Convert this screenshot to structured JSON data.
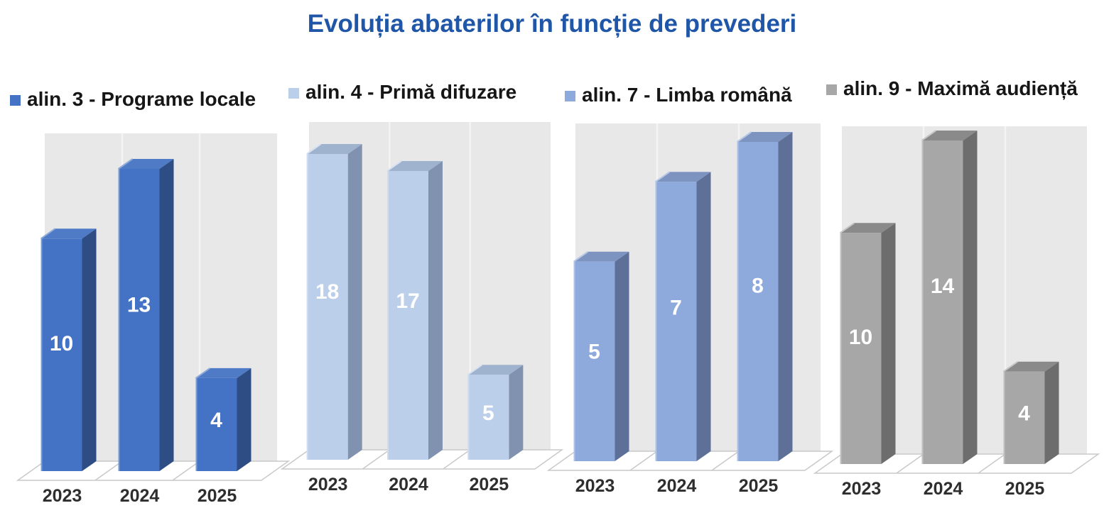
{
  "title": "Evoluția abaterilor în funcție de prevederi",
  "title_color": "#2056a8",
  "chart_data": [
    {
      "type": "bar",
      "name": "alin. 3 - Programe locale",
      "categories": [
        "2023",
        "2024",
        "2025"
      ],
      "values": [
        10,
        13,
        4
      ],
      "data_labels": [
        "10",
        "13",
        "4"
      ],
      "legend_position": "top",
      "colors": {
        "front": "#4472c4",
        "side": "#2e4d85",
        "top": "#4f7ac6",
        "edge": "#8fabd9"
      }
    },
    {
      "type": "bar",
      "name": "alin. 4 - Primă difuzare",
      "categories": [
        "2023",
        "2024",
        "2025"
      ],
      "values": [
        18,
        17,
        5
      ],
      "data_labels": [
        "18",
        "17",
        "5"
      ],
      "legend_position": "top",
      "colors": {
        "front": "#bccfea",
        "side": "#8092af",
        "top": "#9fb2ce",
        "edge": "#d6e1f2"
      }
    },
    {
      "type": "bar",
      "name": "alin. 7 - Limba română",
      "categories": [
        "2023",
        "2024",
        "2025"
      ],
      "values": [
        5,
        7,
        8
      ],
      "data_labels": [
        "5",
        "7",
        "8"
      ],
      "legend_position": "top",
      "colors": {
        "front": "#8ea9db",
        "side": "#5e7098",
        "top": "#7d94c0",
        "edge": "#b7c8e6"
      }
    },
    {
      "type": "bar",
      "name": "alin. 9 - Maximă audiență",
      "categories": [
        "2023",
        "2024",
        "2025"
      ],
      "values": [
        10,
        14,
        4
      ],
      "data_labels": [
        "10",
        "14",
        "4"
      ],
      "legend_position": "top",
      "colors": {
        "front": "#a7a7a7",
        "side": "#6d6d6d",
        "top": "#8a8a8a",
        "edge": "#c6c6c6"
      }
    }
  ],
  "value_label_color": "#ffffff",
  "year_label_color": "#2e2e2e",
  "wall_color": "#e8e8e8",
  "gridline_color": "#f4f4f4",
  "floor_stroke_color": "#c9c9c9",
  "floor_fill_color": "#ffffff"
}
